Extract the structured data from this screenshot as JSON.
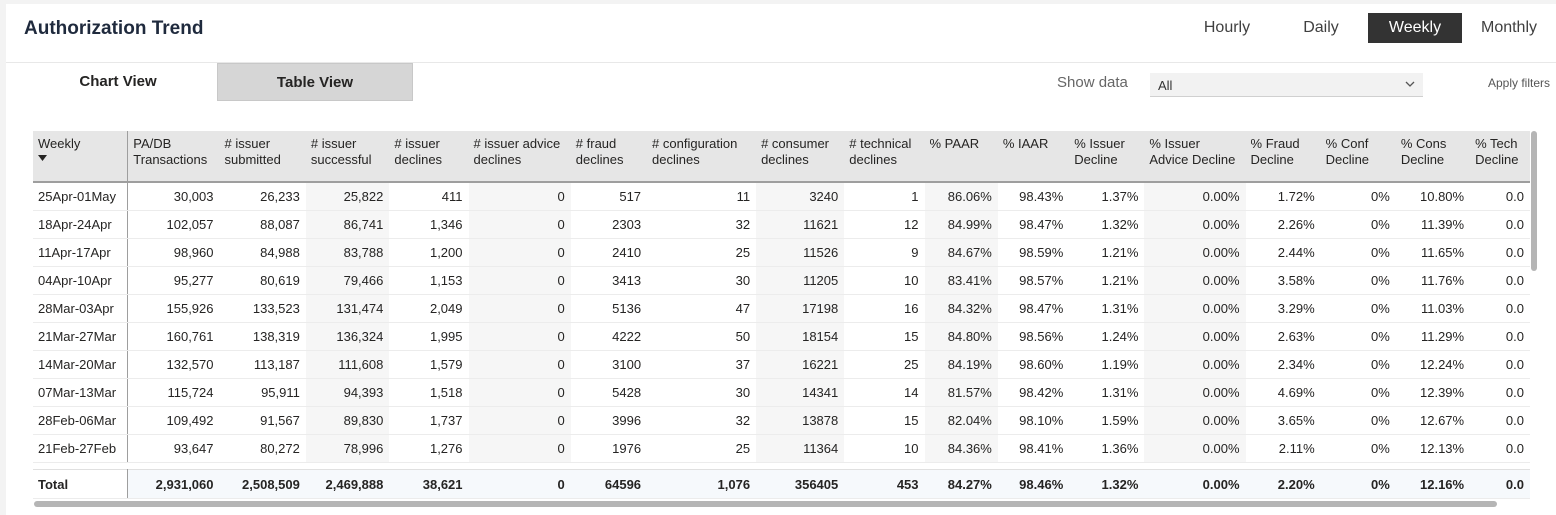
{
  "header": {
    "title": "Authorization Trend"
  },
  "period_tabs": [
    {
      "label": "Hourly",
      "active": false
    },
    {
      "label": "Daily",
      "active": false
    },
    {
      "label": "Weekly",
      "active": true
    },
    {
      "label": "Monthly",
      "active": false
    }
  ],
  "view_tabs": {
    "chart": "Chart View",
    "table": "Table View",
    "active": "table"
  },
  "filters": {
    "show_data_label": "Show data",
    "show_data_value": "All",
    "apply_label": "Apply filters"
  },
  "table": {
    "columns": [
      "Weekly",
      "PA/DB\nTransactions",
      "# issuer\nsubmitted",
      "# issuer\nsuccessful",
      "# issuer\ndeclines",
      "# issuer advice\ndeclines",
      "# fraud\ndeclines",
      "# configuration\ndeclines",
      "# consumer\ndeclines",
      "# technical\ndeclines",
      "% PAAR",
      "% IAAR",
      "% Issuer\nDecline",
      "% Issuer\nAdvice Decline",
      "% Fraud\nDecline",
      "% Conf\nDecline",
      "% Cons\nDecline",
      "% Tech\nDecline"
    ],
    "rows": [
      [
        "25Apr-01May",
        "30,003",
        "26,233",
        "25,822",
        "411",
        "0",
        "517",
        "11",
        "3240",
        "1",
        "86.06%",
        "98.43%",
        "1.37%",
        "0.00%",
        "1.72%",
        "0%",
        "10.80%",
        "0.0"
      ],
      [
        "18Apr-24Apr",
        "102,057",
        "88,087",
        "86,741",
        "1,346",
        "0",
        "2303",
        "32",
        "11621",
        "12",
        "84.99%",
        "98.47%",
        "1.32%",
        "0.00%",
        "2.26%",
        "0%",
        "11.39%",
        "0.0"
      ],
      [
        "11Apr-17Apr",
        "98,960",
        "84,988",
        "83,788",
        "1,200",
        "0",
        "2410",
        "25",
        "11526",
        "9",
        "84.67%",
        "98.59%",
        "1.21%",
        "0.00%",
        "2.44%",
        "0%",
        "11.65%",
        "0.0"
      ],
      [
        "04Apr-10Apr",
        "95,277",
        "80,619",
        "79,466",
        "1,153",
        "0",
        "3413",
        "30",
        "11205",
        "10",
        "83.41%",
        "98.57%",
        "1.21%",
        "0.00%",
        "3.58%",
        "0%",
        "11.76%",
        "0.0"
      ],
      [
        "28Mar-03Apr",
        "155,926",
        "133,523",
        "131,474",
        "2,049",
        "0",
        "5136",
        "47",
        "17198",
        "16",
        "84.32%",
        "98.47%",
        "1.31%",
        "0.00%",
        "3.29%",
        "0%",
        "11.03%",
        "0.0"
      ],
      [
        "21Mar-27Mar",
        "160,761",
        "138,319",
        "136,324",
        "1,995",
        "0",
        "4222",
        "50",
        "18154",
        "15",
        "84.80%",
        "98.56%",
        "1.24%",
        "0.00%",
        "2.63%",
        "0%",
        "11.29%",
        "0.0"
      ],
      [
        "14Mar-20Mar",
        "132,570",
        "113,187",
        "111,608",
        "1,579",
        "0",
        "3100",
        "37",
        "16221",
        "25",
        "84.19%",
        "98.60%",
        "1.19%",
        "0.00%",
        "2.34%",
        "0%",
        "12.24%",
        "0.0"
      ],
      [
        "07Mar-13Mar",
        "115,724",
        "95,911",
        "94,393",
        "1,518",
        "0",
        "5428",
        "30",
        "14341",
        "14",
        "81.57%",
        "98.42%",
        "1.31%",
        "0.00%",
        "4.69%",
        "0%",
        "12.39%",
        "0.0"
      ],
      [
        "28Feb-06Mar",
        "109,492",
        "91,567",
        "89,830",
        "1,737",
        "0",
        "3996",
        "32",
        "13878",
        "15",
        "82.04%",
        "98.10%",
        "1.59%",
        "0.00%",
        "3.65%",
        "0%",
        "12.67%",
        "0.0"
      ],
      [
        "21Feb-27Feb",
        "93,647",
        "80,272",
        "78,996",
        "1,276",
        "0",
        "1976",
        "25",
        "11364",
        "10",
        "84.36%",
        "98.41%",
        "1.36%",
        "0.00%",
        "2.11%",
        "0%",
        "12.13%",
        "0.0"
      ]
    ],
    "total": [
      "Total",
      "2,931,060",
      "2,508,509",
      "2,469,888",
      "38,621",
      "0",
      "64596",
      "1,076",
      "356405",
      "453",
      "84.27%",
      "98.46%",
      "1.32%",
      "0.00%",
      "2.20%",
      "0%",
      "12.16%",
      "0.0"
    ]
  }
}
